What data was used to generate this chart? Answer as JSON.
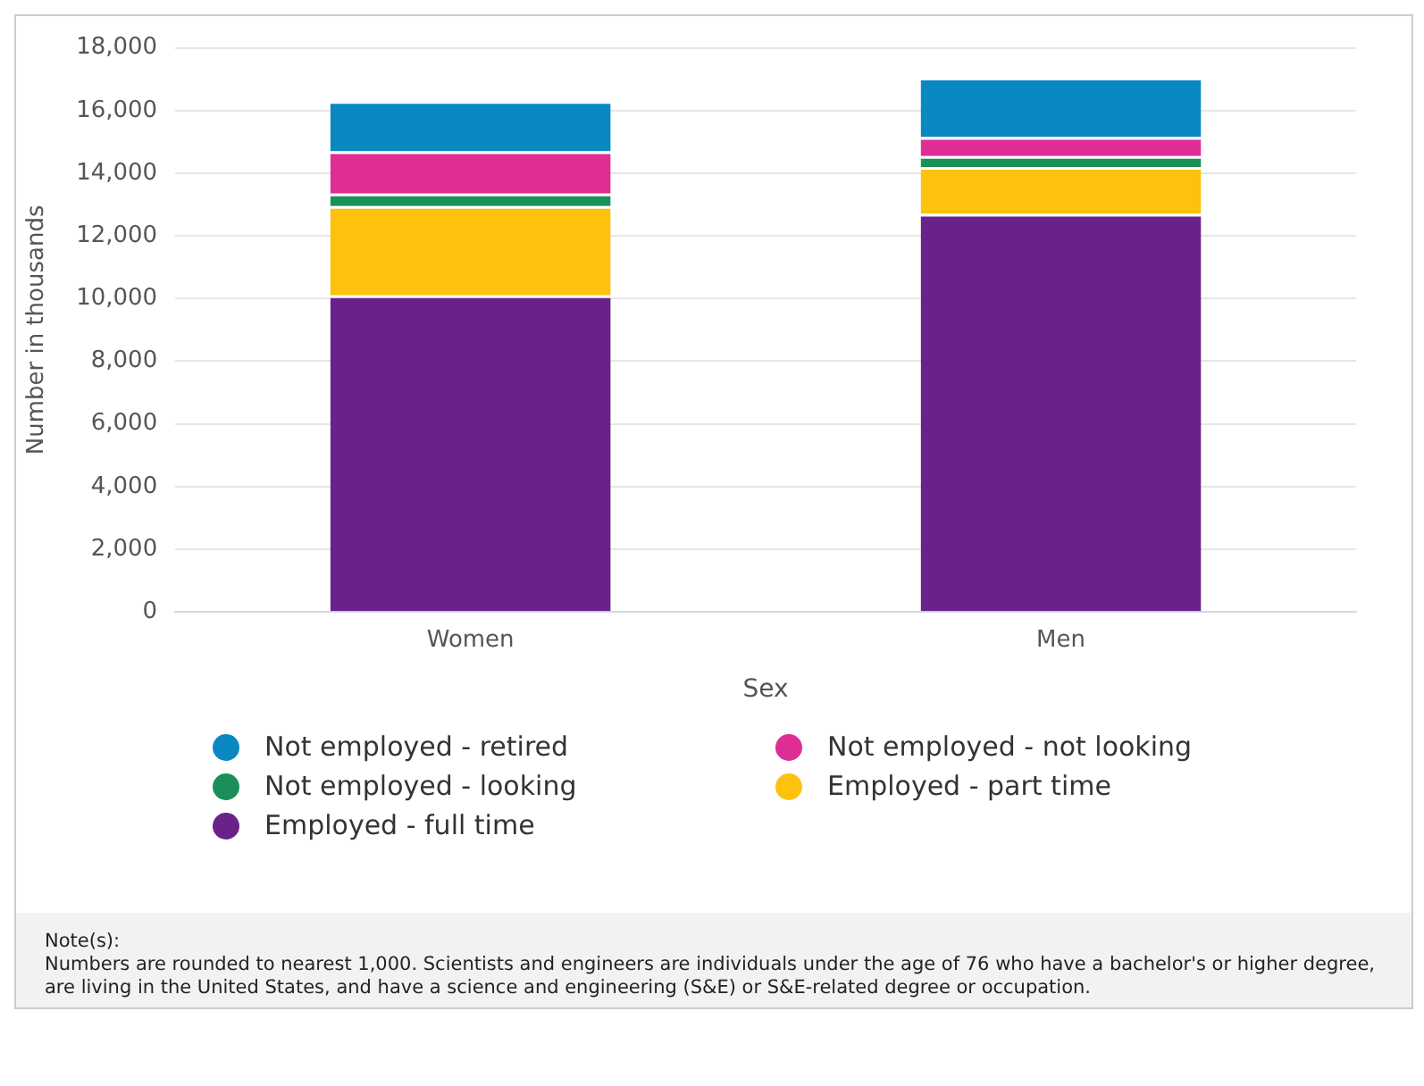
{
  "chart_data": {
    "type": "bar",
    "stacked": true,
    "categories": [
      "Women",
      "Men"
    ],
    "xlabel": "Sex",
    "ylabel": "Number in thousands",
    "series": [
      {
        "name": "Employed - full time",
        "color": "#68228a",
        "values": [
          10100,
          12700
        ]
      },
      {
        "name": "Employed - part time",
        "color": "#fdc20e",
        "values": [
          2850,
          1500
        ]
      },
      {
        "name": "Not employed - looking",
        "color": "#1a8f5a",
        "values": [
          400,
          350
        ]
      },
      {
        "name": "Not employed - not looking",
        "color": "#de2d95",
        "values": [
          1350,
          600
        ]
      },
      {
        "name": "Not employed - retired",
        "color": "#0a88c2",
        "values": [
          1600,
          1900
        ]
      }
    ],
    "ylim": [
      0,
      18000
    ],
    "yticks": [
      {
        "value": 0,
        "label": "0"
      },
      {
        "value": 2000,
        "label": "2,000"
      },
      {
        "value": 4000,
        "label": "4,000"
      },
      {
        "value": 6000,
        "label": "6,000"
      },
      {
        "value": 8000,
        "label": "8,000"
      },
      {
        "value": 10000,
        "label": "10,000"
      },
      {
        "value": 12000,
        "label": "12,000"
      },
      {
        "value": 14000,
        "label": "14,000"
      },
      {
        "value": 16000,
        "label": "16,000"
      },
      {
        "value": 18000,
        "label": "18,000"
      }
    ],
    "grid": "y",
    "legend": "bottom",
    "annotations": [
      "Note(s):",
      "Numbers are rounded to nearest 1,000. Scientists and engineers are individuals under the age of 76 who have a bachelor's or higher degree, are living in the United States, and have a science and engineering (S&E) or S&E-related degree or occupation."
    ]
  }
}
